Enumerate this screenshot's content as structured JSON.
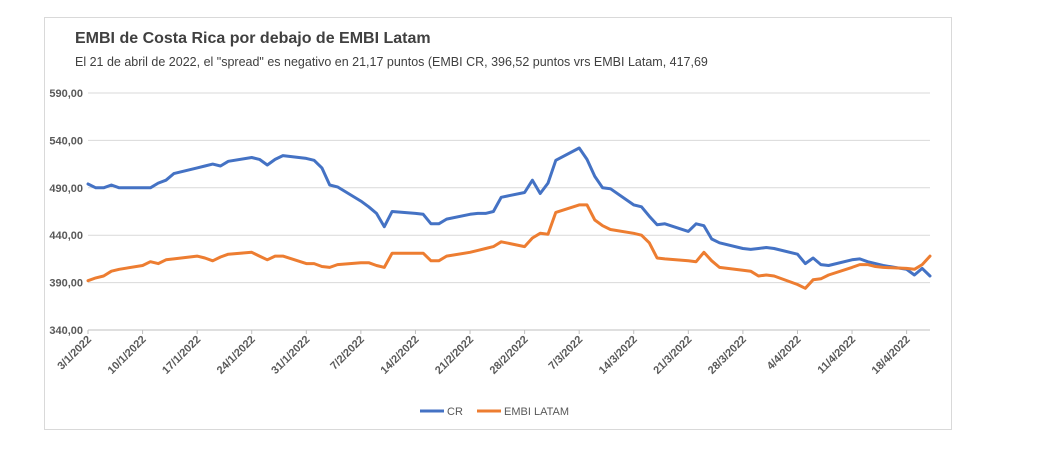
{
  "chart_data": {
    "type": "line",
    "title": "EMBI de Costa Rica por debajo de EMBI Latam",
    "subtitle": "El 21 de abril de 2022, el \"spread\" es negativo en 21,17 puntos (EMBI CR, 396,52 puntos vrs EMBI Latam, 417,69",
    "xlabel": "",
    "ylabel": "",
    "ylim": [
      340,
      590
    ],
    "yticks": [
      "340,00",
      "390,00",
      "440,00",
      "490,00",
      "540,00",
      "590,00"
    ],
    "ytick_values": [
      340,
      390,
      440,
      490,
      540,
      590
    ],
    "xticks": [
      "3/1/2022",
      "10/1/2022",
      "17/1/2022",
      "24/1/2022",
      "31/1/2022",
      "7/2/2022",
      "14/2/2022",
      "21/2/2022",
      "28/2/2022",
      "7/3/2022",
      "14/3/2022",
      "21/3/2022",
      "28/3/2022",
      "4/4/2022",
      "11/4/2022",
      "18/4/2022"
    ],
    "grid": true,
    "legend_position": "bottom",
    "x": [
      "2022-01-03",
      "2022-01-04",
      "2022-01-05",
      "2022-01-06",
      "2022-01-07",
      "2022-01-10",
      "2022-01-11",
      "2022-01-12",
      "2022-01-13",
      "2022-01-14",
      "2022-01-17",
      "2022-01-18",
      "2022-01-19",
      "2022-01-20",
      "2022-01-21",
      "2022-01-24",
      "2022-01-25",
      "2022-01-26",
      "2022-01-27",
      "2022-01-28",
      "2022-01-31",
      "2022-02-01",
      "2022-02-02",
      "2022-02-03",
      "2022-02-04",
      "2022-02-07",
      "2022-02-08",
      "2022-02-09",
      "2022-02-10",
      "2022-02-11",
      "2022-02-14",
      "2022-02-15",
      "2022-02-16",
      "2022-02-17",
      "2022-02-18",
      "2022-02-21",
      "2022-02-22",
      "2022-02-23",
      "2022-02-24",
      "2022-02-25",
      "2022-02-28",
      "2022-03-01",
      "2022-03-02",
      "2022-03-03",
      "2022-03-04",
      "2022-03-07",
      "2022-03-08",
      "2022-03-09",
      "2022-03-10",
      "2022-03-11",
      "2022-03-14",
      "2022-03-15",
      "2022-03-16",
      "2022-03-17",
      "2022-03-18",
      "2022-03-21",
      "2022-03-22",
      "2022-03-23",
      "2022-03-24",
      "2022-03-25",
      "2022-03-28",
      "2022-03-29",
      "2022-03-30",
      "2022-03-31",
      "2022-04-01",
      "2022-04-04",
      "2022-04-05",
      "2022-04-06",
      "2022-04-07",
      "2022-04-08",
      "2022-04-11",
      "2022-04-12",
      "2022-04-13",
      "2022-04-14",
      "2022-04-15",
      "2022-04-18",
      "2022-04-19",
      "2022-04-20",
      "2022-04-21"
    ],
    "series": [
      {
        "name": "CR",
        "color": "#4472c4",
        "values": [
          494,
          490,
          490,
          493,
          490,
          490,
          490,
          495,
          498,
          505,
          511,
          513,
          515,
          513,
          518,
          522,
          520,
          514,
          520,
          524,
          521,
          519,
          511,
          493,
          491,
          476,
          470,
          463,
          449,
          465,
          463,
          462,
          452,
          452,
          457,
          462,
          463,
          463,
          465,
          480,
          485,
          498,
          484,
          495,
          519,
          532,
          520,
          502,
          490,
          489,
          472,
          470,
          460,
          451,
          452,
          444,
          452,
          450,
          436,
          432,
          426,
          425,
          426,
          427,
          426,
          420,
          410,
          416,
          409,
          408,
          414,
          415,
          412,
          410,
          408,
          404,
          398,
          405,
          397
        ]
      },
      {
        "name": "EMBI LATAM",
        "color": "#ed7d31",
        "values": [
          392,
          395,
          397,
          402,
          404,
          408,
          412,
          410,
          414,
          415,
          418,
          416,
          413,
          417,
          420,
          422,
          418,
          414,
          418,
          418,
          410,
          410,
          407,
          406,
          409,
          411,
          411,
          408,
          406,
          421,
          421,
          421,
          413,
          413,
          418,
          422,
          424,
          426,
          428,
          433,
          428,
          437,
          442,
          441,
          464,
          472,
          472,
          456,
          450,
          446,
          442,
          440,
          432,
          416,
          415,
          413,
          412,
          422,
          413,
          406,
          403,
          402,
          397,
          398,
          397,
          388,
          384,
          393,
          394,
          398,
          406,
          409,
          409,
          407,
          406,
          405,
          404,
          409,
          418
        ]
      }
    ]
  }
}
